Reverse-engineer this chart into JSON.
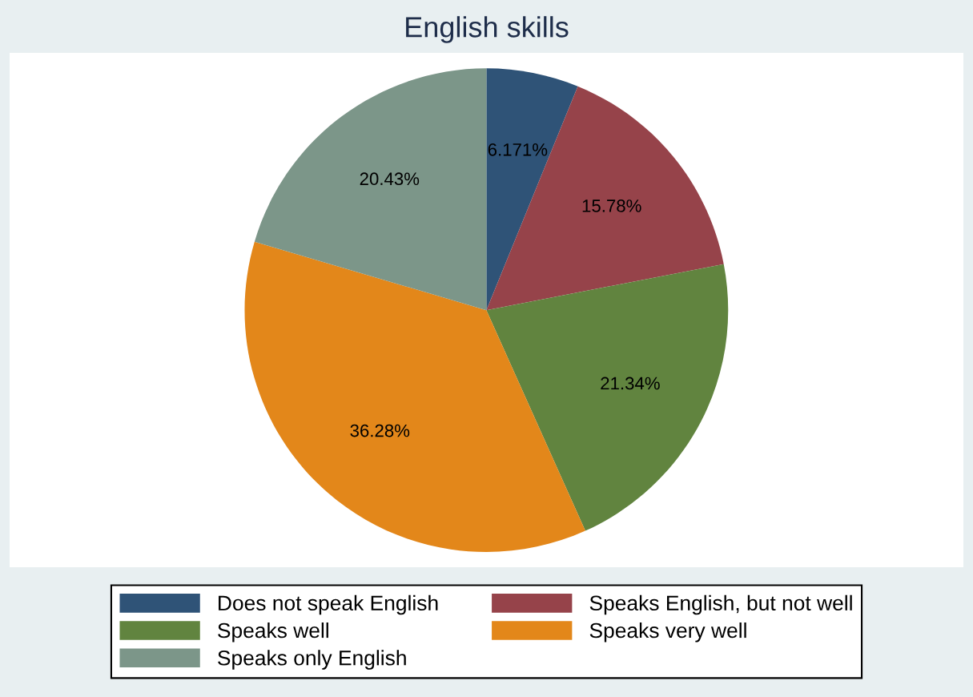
{
  "chart_data": {
    "type": "pie",
    "title": "English skills",
    "categories": [
      "Does not speak English",
      "Speaks English, but not well",
      "Speaks well",
      "Speaks very well",
      "Speaks only English"
    ],
    "values": [
      6.171,
      15.78,
      21.34,
      36.28,
      20.43
    ],
    "value_labels": [
      "6.171%",
      "15.78%",
      "21.34%",
      "36.28%",
      "20.43%"
    ],
    "colors": [
      "#2f5377",
      "#96434a",
      "#61843f",
      "#e3871a",
      "#7c9689"
    ],
    "legend": "bottom"
  }
}
